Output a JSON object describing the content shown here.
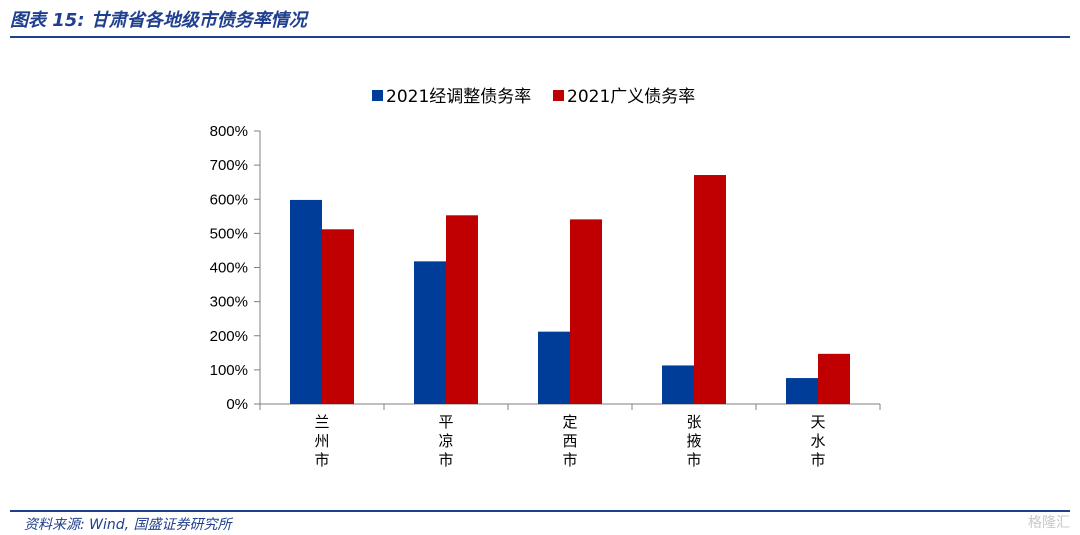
{
  "header": {
    "title": "图表 15:  甘肃省各地级市债务率情况"
  },
  "footer": {
    "source": "资料来源: Wind, 国盛证券研究所",
    "watermark": "格隆汇"
  },
  "colors": {
    "accent": "#1f3f8f",
    "series_blue": "#003d99",
    "series_red": "#c00000"
  },
  "chart_data": {
    "type": "bar",
    "categories": [
      "兰州市",
      "平凉市",
      "定西市",
      "张掖市",
      "天水市"
    ],
    "series": [
      {
        "name": "2021经调整债务率",
        "color": "#003d99",
        "values": [
          598,
          418,
          212,
          113,
          76
        ]
      },
      {
        "name": "2021广义债务率",
        "color": "#c00000",
        "values": [
          512,
          553,
          541,
          671,
          147
        ]
      }
    ],
    "ylim": [
      0,
      800
    ],
    "yticks": [
      "0%",
      "100%",
      "200%",
      "300%",
      "400%",
      "500%",
      "600%",
      "700%",
      "800%"
    ],
    "ytick_values": [
      0,
      100,
      200,
      300,
      400,
      500,
      600,
      700,
      800
    ],
    "legend_position": "top-center",
    "grid": false
  }
}
